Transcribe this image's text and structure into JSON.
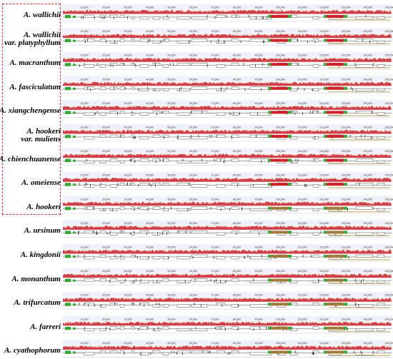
{
  "rows": [
    {
      "label": [
        "A. wallichii"
      ],
      "top": 4
    },
    {
      "label": [
        "A. wallichii",
        "var. platyphyllum"
      ],
      "top": 38
    },
    {
      "label": [
        "A. macranthum"
      ],
      "top": 80
    },
    {
      "label": [
        "A. fasciculatum"
      ],
      "top": 112
    },
    {
      "label": [
        "A. xiangchengense"
      ],
      "top": 146
    },
    {
      "label": [
        "A. hookeri",
        "var. muliens"
      ],
      "top": 178
    },
    {
      "label": [
        "A. chienchuanense"
      ],
      "top": 212
    },
    {
      "label": [
        "A. omeiense"
      ],
      "top": 244
    },
    {
      "label": [
        "A. hookeri"
      ],
      "top": 278
    },
    {
      "label": [
        "A. ursinum"
      ],
      "top": 312
    },
    {
      "label": [
        "A. kingdonii"
      ],
      "top": 344
    },
    {
      "label": [
        "A. monanthum"
      ],
      "top": 378
    },
    {
      "label": [
        "A. trifurcatum"
      ],
      "top": 410
    },
    {
      "label": [
        "A. farreri"
      ],
      "top": 444
    },
    {
      "label": [
        "A. cyathophorum"
      ],
      "top": 476
    }
  ],
  "scale_ticks": [
    "10,000",
    "20,000",
    "30,000",
    "40,000",
    "50,000",
    "60,000",
    "70,000",
    "80,000",
    "90,000",
    "100,000",
    "110,000",
    "120,000",
    "130,000",
    "140,000",
    "150,000"
  ],
  "colors": {
    "identity": "#c8232c",
    "box": "#e0312b",
    "track_bg": "#f7e3e3",
    "gene_white": "#ffffff",
    "trna_green": "#35a935",
    "rrna_red": "#d0202a",
    "highlight_brown": "#a07a3a"
  }
}
